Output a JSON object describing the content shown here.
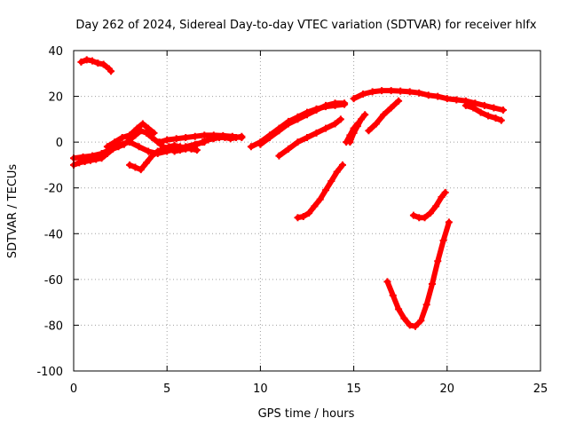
{
  "chart_data": {
    "type": "scatter",
    "title": "Day 262 of 2024, Sidereal Day-to-day VTEC variation (SDTVAR) for receiver hlfx",
    "xlabel": "GPS time / hours",
    "ylabel": "SDTVAR / TECUs",
    "xlim": [
      0,
      25
    ],
    "ylim": [
      -100,
      40
    ],
    "xticks": [
      0,
      5,
      10,
      15,
      20,
      25
    ],
    "yticks": [
      -100,
      -80,
      -60,
      -40,
      -20,
      0,
      20,
      40
    ],
    "grid": true,
    "legend": "none",
    "marker": "plus",
    "series_color": "#ff0000",
    "series": [
      {
        "x": [
          0.4,
          0.7,
          1.0,
          1.3,
          1.6,
          1.9,
          2.0
        ],
        "y": [
          35,
          36,
          35.5,
          34.5,
          34,
          32,
          31
        ]
      },
      {
        "x": [
          0.0,
          0.3,
          0.6,
          0.9,
          1.2,
          1.5,
          1.8,
          2.1,
          2.4,
          2.7,
          3.0,
          3.3,
          3.6,
          3.9,
          4.2,
          4.5,
          4.8,
          5.1,
          5.4,
          5.7,
          6.0,
          6.3,
          6.6,
          6.9,
          7.2,
          7.5,
          7.8,
          8.1,
          8.4,
          8.7,
          9.0
        ],
        "y": [
          -10,
          -9,
          -8.5,
          -8,
          -7.5,
          -7,
          -5,
          -3,
          -2,
          -1,
          1,
          3,
          5,
          4,
          2,
          0,
          -2,
          -3,
          -4,
          -3.5,
          -3,
          -2.5,
          -1,
          0,
          1,
          1.5,
          2,
          2,
          1.5,
          2,
          2.5
        ]
      },
      {
        "x": [
          0.0,
          0.5,
          1.0,
          1.5,
          2.0,
          2.5,
          3.0,
          3.5,
          4.0,
          4.5,
          5.0,
          5.5,
          6.0,
          6.5,
          7.0
        ],
        "y": [
          -7,
          -6.5,
          -6,
          -5,
          -3,
          -1,
          0,
          -2,
          -4,
          -5,
          -4,
          -3,
          -2,
          -1,
          0
        ]
      },
      {
        "x": [
          1.8,
          2.2,
          2.6,
          3.0,
          3.4,
          3.7,
          4.0,
          4.3
        ],
        "y": [
          -2,
          0,
          2,
          3,
          6,
          8,
          6,
          4
        ]
      },
      {
        "x": [
          3.0,
          3.3,
          3.6,
          3.9,
          4.2,
          4.5,
          4.8,
          5.1,
          5.4,
          5.7,
          6.0,
          6.3,
          6.6
        ],
        "y": [
          -10,
          -11,
          -12,
          -9,
          -6,
          -4,
          -3,
          -2,
          -1.5,
          -2,
          -2.5,
          -3,
          -3.5
        ]
      },
      {
        "x": [
          4.6,
          5.0,
          5.5,
          6.0,
          6.5,
          7.0,
          7.5,
          8.0,
          8.5,
          9.0
        ],
        "y": [
          0,
          1,
          1.5,
          2,
          2.5,
          3,
          3,
          2.8,
          2.5,
          2
        ]
      },
      {
        "x": [
          9.5,
          10.0,
          10.5,
          11.0,
          11.5,
          12.0,
          12.5,
          13.0,
          13.5,
          14.0,
          14.5
        ],
        "y": [
          -2,
          0,
          3,
          6,
          9,
          11,
          13,
          14.5,
          15.5,
          16,
          16.5
        ]
      },
      {
        "x": [
          10.0,
          10.5,
          11.0,
          11.5,
          12.0,
          12.5,
          13.0,
          13.5,
          14.0,
          14.5
        ],
        "y": [
          -1,
          2,
          5,
          8,
          10,
          12,
          14,
          16,
          17,
          17
        ]
      },
      {
        "x": [
          11.0,
          11.5,
          12.0,
          12.5,
          13.0,
          13.5,
          14.0,
          14.3
        ],
        "y": [
          -6,
          -3,
          0,
          2,
          4,
          6,
          8,
          10
        ]
      },
      {
        "x": [
          12.0,
          12.3,
          12.6,
          12.9,
          13.2,
          13.5,
          13.8,
          14.1,
          14.4
        ],
        "y": [
          -33,
          -32.5,
          -31,
          -28,
          -25,
          -21,
          -17,
          -13,
          -10
        ]
      },
      {
        "x": [
          14.8,
          15.0,
          15.2,
          15.4,
          15.6
        ],
        "y": [
          0,
          4,
          7,
          10,
          12
        ]
      },
      {
        "x": [
          14.6,
          14.8,
          15.0,
          15.2
        ],
        "y": [
          0,
          3,
          6,
          8
        ]
      },
      {
        "x": [
          15.0,
          15.5,
          16.0,
          16.5,
          17.0,
          17.5,
          18.0,
          18.5,
          19.0,
          19.5,
          20.0,
          20.5,
          21.0,
          21.5,
          22.0,
          22.5,
          23.0
        ],
        "y": [
          19,
          21,
          22,
          22.5,
          22.5,
          22.3,
          22,
          21.5,
          20.5,
          20,
          19,
          18.5,
          18,
          17,
          16,
          15,
          14
        ]
      },
      {
        "x": [
          15.8,
          16.2,
          16.6,
          17.0,
          17.4
        ],
        "y": [
          5,
          8,
          12,
          15,
          18
        ]
      },
      {
        "x": [
          16.8,
          17.1,
          17.4,
          17.7,
          18.0,
          18.3,
          18.6,
          18.9,
          19.2,
          19.5,
          19.8,
          20.1
        ],
        "y": [
          -61,
          -67,
          -73,
          -77,
          -80,
          -80.5,
          -78,
          -71,
          -62,
          -52,
          -43,
          -35
        ]
      },
      {
        "x": [
          18.2,
          18.5,
          18.8,
          19.1,
          19.4,
          19.7,
          19.9
        ],
        "y": [
          -32,
          -33,
          -33,
          -31,
          -28,
          -24,
          -22
        ]
      },
      {
        "x": [
          21.0,
          21.4,
          21.8,
          22.2,
          22.6,
          22.9
        ],
        "y": [
          16,
          15,
          13,
          11.5,
          10.5,
          9.5
        ]
      }
    ]
  }
}
